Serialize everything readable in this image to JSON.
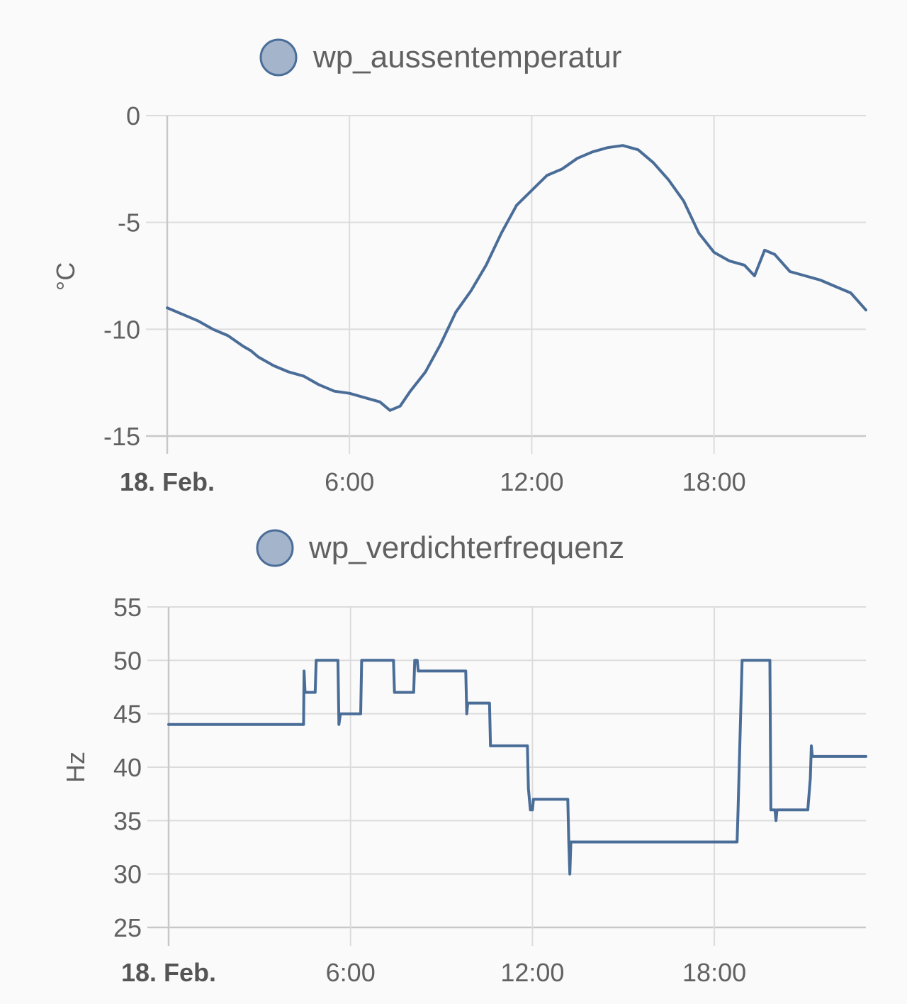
{
  "colors": {
    "series": "#4a6d98",
    "legend_fill": "#a3b4cb",
    "legend_stroke": "#4a6d98"
  },
  "chart_data": [
    {
      "type": "line",
      "legend": [
        "wp_aussentemperatur"
      ],
      "ylabel": "°C",
      "ylim": [
        -15,
        0
      ],
      "yticks": [
        "0",
        "-5",
        "-10",
        "-15"
      ],
      "xlim": [
        "2024-02-18T00:00",
        "2024-02-18T23:00"
      ],
      "xticks": [
        "18. Feb.",
        "6:00",
        "12:00",
        "18:00"
      ],
      "grid": true,
      "legend_position": "top",
      "series": [
        {
          "name": "wp_aussentemperatur",
          "x": [
            "2024-02-18T00:00",
            "2024-02-18T00:30",
            "2024-02-18T01:00",
            "2024-02-18T01:30",
            "2024-02-18T02:00",
            "2024-02-18T02:30",
            "2024-02-18T02:45",
            "2024-02-18T03:00",
            "2024-02-18T03:30",
            "2024-02-18T04:00",
            "2024-02-18T04:30",
            "2024-02-18T05:00",
            "2024-02-18T05:30",
            "2024-02-18T06:00",
            "2024-02-18T06:30",
            "2024-02-18T07:00",
            "2024-02-18T07:20",
            "2024-02-18T07:40",
            "2024-02-18T08:00",
            "2024-02-18T08:30",
            "2024-02-18T09:00",
            "2024-02-18T09:30",
            "2024-02-18T10:00",
            "2024-02-18T10:30",
            "2024-02-18T11:00",
            "2024-02-18T11:30",
            "2024-02-18T12:00",
            "2024-02-18T12:30",
            "2024-02-18T13:00",
            "2024-02-18T13:30",
            "2024-02-18T14:00",
            "2024-02-18T14:30",
            "2024-02-18T15:00",
            "2024-02-18T15:30",
            "2024-02-18T16:00",
            "2024-02-18T16:30",
            "2024-02-18T17:00",
            "2024-02-18T17:30",
            "2024-02-18T18:00",
            "2024-02-18T18:30",
            "2024-02-18T19:00",
            "2024-02-18T19:20",
            "2024-02-18T19:40",
            "2024-02-18T20:00",
            "2024-02-18T20:30",
            "2024-02-18T21:00",
            "2024-02-18T21:30",
            "2024-02-18T22:00",
            "2024-02-18T22:30",
            "2024-02-18T23:00"
          ],
          "values": [
            -9.0,
            -9.3,
            -9.6,
            -10.0,
            -10.3,
            -10.8,
            -11.0,
            -11.3,
            -11.7,
            -12.0,
            -12.2,
            -12.6,
            -12.9,
            -13.0,
            -13.2,
            -13.4,
            -13.8,
            -13.6,
            -12.9,
            -12.0,
            -10.7,
            -9.2,
            -8.2,
            -7.0,
            -5.5,
            -4.2,
            -3.5,
            -2.8,
            -2.5,
            -2.0,
            -1.7,
            -1.5,
            -1.4,
            -1.6,
            -2.2,
            -3.0,
            -4.0,
            -5.5,
            -6.4,
            -6.8,
            -7.0,
            -7.5,
            -6.3,
            -6.5,
            -7.3,
            -7.5,
            -7.7,
            -8.0,
            -8.3,
            -9.1
          ]
        }
      ]
    },
    {
      "type": "line",
      "legend": [
        "wp_verdichterfrequenz"
      ],
      "ylabel": "Hz",
      "ylim": [
        25,
        55
      ],
      "yticks": [
        "55",
        "50",
        "45",
        "40",
        "35",
        "30",
        "25"
      ],
      "xlim": [
        "2024-02-18T00:00",
        "2024-02-18T23:00"
      ],
      "xticks": [
        "18. Feb.",
        "6:00",
        "12:00",
        "18:00"
      ],
      "grid": true,
      "legend_position": "top",
      "series": [
        {
          "name": "wp_verdichterfrequenz",
          "x": [
            "2024-02-18T00:00",
            "2024-02-18T04:27",
            "2024-02-18T04:28",
            "2024-02-18T04:30",
            "2024-02-18T04:32",
            "2024-02-18T04:50",
            "2024-02-18T04:52",
            "2024-02-18T05:35",
            "2024-02-18T05:37",
            "2024-02-18T05:40",
            "2024-02-18T05:42",
            "2024-02-18T06:20",
            "2024-02-18T06:22",
            "2024-02-18T06:35",
            "2024-02-18T06:37",
            "2024-02-18T07:25",
            "2024-02-18T07:27",
            "2024-02-18T08:05",
            "2024-02-18T08:07",
            "2024-02-18T08:12",
            "2024-02-18T08:14",
            "2024-02-18T08:25",
            "2024-02-18T08:27",
            "2024-02-18T09:48",
            "2024-02-18T09:50",
            "2024-02-18T09:52",
            "2024-02-18T09:54",
            "2024-02-18T10:35",
            "2024-02-18T10:37",
            "2024-02-18T10:39",
            "2024-02-18T10:41",
            "2024-02-18T11:50",
            "2024-02-18T11:52",
            "2024-02-18T11:54",
            "2024-02-18T11:56",
            "2024-02-18T12:00",
            "2024-02-18T12:02",
            "2024-02-18T13:10",
            "2024-02-18T13:12",
            "2024-02-18T13:14",
            "2024-02-18T13:16",
            "2024-02-18T13:18",
            "2024-02-18T18:45",
            "2024-02-18T18:47",
            "2024-02-18T18:55",
            "2024-02-18T18:57",
            "2024-02-18T19:50",
            "2024-02-18T19:52",
            "2024-02-18T20:00",
            "2024-02-18T20:02",
            "2024-02-18T20:04",
            "2024-02-18T21:05",
            "2024-02-18T21:10",
            "2024-02-18T21:12",
            "2024-02-18T21:14",
            "2024-02-18T23:00"
          ],
          "values": [
            44.0,
            44.0,
            49.0,
            47.0,
            47.0,
            47.0,
            50.0,
            50.0,
            44.0,
            45.0,
            45.0,
            45.0,
            50.0,
            50.0,
            50.0,
            50.0,
            47.0,
            47.0,
            50.0,
            50.0,
            49.0,
            49.0,
            49.0,
            49.0,
            45.0,
            46.0,
            46.0,
            46.0,
            42.0,
            42.0,
            42.0,
            42.0,
            38.0,
            37.0,
            36.0,
            36.0,
            37.0,
            37.0,
            33.0,
            30.0,
            33.0,
            33.0,
            33.0,
            36.0,
            50.0,
            50.0,
            50.0,
            36.0,
            36.0,
            35.0,
            36.0,
            36.0,
            39.0,
            42.0,
            41.0,
            41.0
          ]
        }
      ]
    }
  ]
}
